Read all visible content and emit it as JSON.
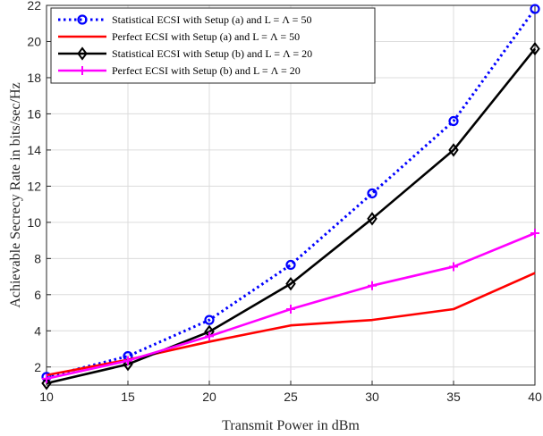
{
  "chart_data": {
    "type": "line",
    "xlabel": "Transmit Power in dBm",
    "ylabel": "Achievable Secrecy Rate in bits/sec/Hz",
    "xlim": [
      10,
      40
    ],
    "ylim": [
      1,
      22
    ],
    "xticks": [
      "10",
      "15",
      "20",
      "25",
      "30",
      "35",
      "40"
    ],
    "yticks": [
      "2",
      "4",
      "6",
      "8",
      "10",
      "12",
      "14",
      "16",
      "18",
      "20",
      "22"
    ],
    "grid": true,
    "legend_position": "top-left",
    "x": [
      10,
      15,
      20,
      25,
      30,
      35,
      40
    ],
    "series": [
      {
        "name": "Statistical ECSI with Setup (a) and L = Λ = 50",
        "values": [
          1.45,
          2.6,
          4.6,
          7.65,
          11.6,
          15.6,
          21.8
        ],
        "color": "#0000ff",
        "line": "dotted",
        "marker": "circle"
      },
      {
        "name": "Perfect ECSI with Setup (a) and L = Λ = 50",
        "values": [
          1.55,
          2.4,
          3.4,
          4.3,
          4.6,
          5.2,
          7.2
        ],
        "color": "#ff0000",
        "line": "solid",
        "marker": "none"
      },
      {
        "name": "Statistical ECSI with Setup (b) and L = Λ = 20",
        "values": [
          1.1,
          2.15,
          3.95,
          6.6,
          10.2,
          14.0,
          19.6
        ],
        "color": "#000000",
        "line": "solid",
        "marker": "diamond"
      },
      {
        "name": "Perfect ECSI with Setup (b) and L = Λ = 20",
        "values": [
          1.35,
          2.35,
          3.7,
          5.2,
          6.5,
          7.55,
          9.4
        ],
        "color": "#ff00ff",
        "line": "solid",
        "marker": "plus"
      }
    ]
  }
}
